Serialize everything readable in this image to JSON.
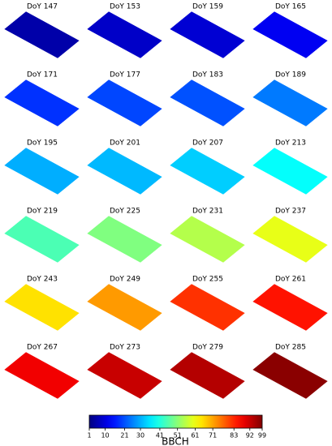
{
  "panels": [
    {
      "label": "DoY 147",
      "bbch": 5
    },
    {
      "label": "DoY 153",
      "bbch": 8
    },
    {
      "label": "DoY 159",
      "bbch": 9
    },
    {
      "label": "DoY 165",
      "bbch": 12
    },
    {
      "label": "DoY 171",
      "bbch": 18
    },
    {
      "label": "DoY 177",
      "bbch": 20
    },
    {
      "label": "DoY 183",
      "bbch": 21
    },
    {
      "label": "DoY 189",
      "bbch": 25
    },
    {
      "label": "DoY 195",
      "bbch": 30
    },
    {
      "label": "DoY 201",
      "bbch": 31
    },
    {
      "label": "DoY 207",
      "bbch": 33
    },
    {
      "label": "DoY 213",
      "bbch": 38
    },
    {
      "label": "DoY 219",
      "bbch": 45
    },
    {
      "label": "DoY 225",
      "bbch": 50
    },
    {
      "label": "DoY 231",
      "bbch": 55
    },
    {
      "label": "DoY 237",
      "bbch": 60
    },
    {
      "label": "DoY 243",
      "bbch": 65
    },
    {
      "label": "DoY 249",
      "bbch": 72
    },
    {
      "label": "DoY 255",
      "bbch": 82
    },
    {
      "label": "DoY 261",
      "bbch": 85
    },
    {
      "label": "DoY 267",
      "bbch": 88
    },
    {
      "label": "DoY 273",
      "bbch": 92
    },
    {
      "label": "DoY 279",
      "bbch": 94
    },
    {
      "label": "DoY 285",
      "bbch": 98
    }
  ],
  "colorbar": {
    "label": "BBCH",
    "lim": [
      1,
      99
    ],
    "ticks": [
      1,
      10,
      21,
      30,
      41,
      51,
      61,
      71,
      83,
      92,
      99
    ]
  }
}
